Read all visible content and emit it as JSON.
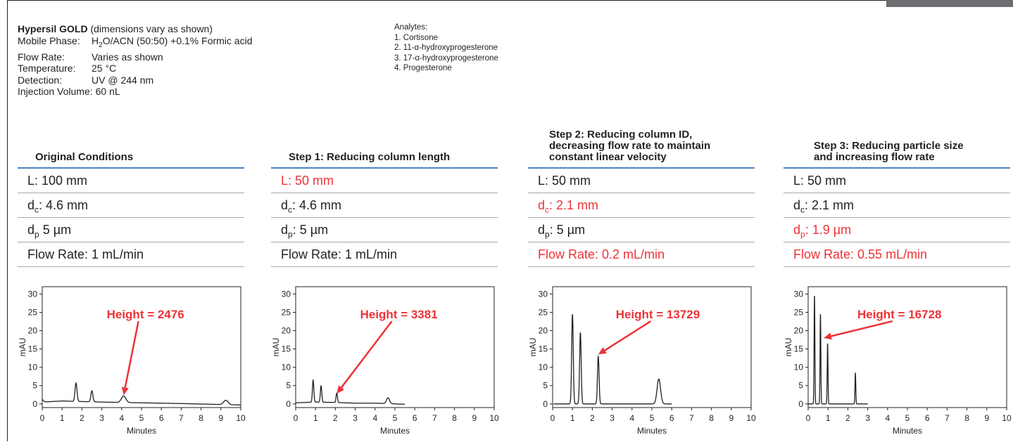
{
  "conditions": {
    "title_bold": "Hypersil GOLD",
    "title_rest": " (dimensions vary as shown)",
    "mobile_phase_label": "Mobile Phase:",
    "mobile_phase_pre": "H",
    "mobile_phase_sub": "2",
    "mobile_phase_post": "O/ACN (50:50) +0.1% Formic acid",
    "flow_rate_label": "Flow Rate:",
    "flow_rate_value": "Varies as shown",
    "temperature_label": "Temperature:",
    "temperature_value": "25 °C",
    "detection_label": "Detection:",
    "detection_value": "UV @ 244 nm",
    "injection_label": "Injection Volume:",
    "injection_value": "60 nL"
  },
  "analytes": {
    "title": "Analytes:",
    "items": [
      "1. Cortisone",
      "2. 11-α-hydroxyprogesterone",
      "3. 17-α-hydroxyprogesterone",
      "4. Progesterone"
    ]
  },
  "panels": [
    {
      "heading_line1": "Original Conditions",
      "heading_line2": "",
      "heading_line3": "",
      "L": "L: 100 mm",
      "dc_pre": "d",
      "dc_sub": "c",
      "dc_post": ": 4.6 mm",
      "dp_pre": "d",
      "dp_sub": "p",
      "dp_post": " 5 µm",
      "flow": "Flow Rate: 1 mL/min",
      "changed": {
        "L": false,
        "dc": false,
        "dp": false,
        "flow": false
      }
    },
    {
      "heading_line1": "Step 1: Reducing column length",
      "heading_line2": "",
      "heading_line3": "",
      "L": "L: 50 mm",
      "dc_pre": "d",
      "dc_sub": "c",
      "dc_post": ": 4.6 mm",
      "dp_pre": "d",
      "dp_sub": "p",
      "dp_post": ": 5 µm",
      "flow": "Flow Rate: 1 mL/min",
      "changed": {
        "L": true,
        "dc": false,
        "dp": false,
        "flow": false
      }
    },
    {
      "heading_line1": "Step 2: Reducing column ID,",
      "heading_line2": "decreasing flow rate to maintain",
      "heading_line3": "constant linear velocity",
      "L": "L: 50 mm",
      "dc_pre": "d",
      "dc_sub": "c",
      "dc_post": ": 2.1 mm",
      "dp_pre": "d",
      "dp_sub": "p",
      "dp_post": ": 5 µm",
      "flow": "Flow Rate: 0.2 mL/min",
      "changed": {
        "L": false,
        "dc": true,
        "dp": false,
        "flow": true
      }
    },
    {
      "heading_line1": "Step 3: Reducing particle size",
      "heading_line2": "and increasing flow rate",
      "heading_line3": "",
      "L": "L: 50 mm",
      "dc_pre": "d",
      "dc_sub": "c",
      "dc_post": ": 2.1 mm",
      "dp_pre": "d",
      "dp_sub": "p",
      "dp_post": ": 1.9 µm",
      "flow": "Flow Rate: 0.55 mL/min",
      "changed": {
        "L": false,
        "dc": false,
        "dp": true,
        "flow": true
      }
    }
  ],
  "chart_data": [
    {
      "type": "line",
      "title": "",
      "xlabel": "Minutes",
      "ylabel": "mAU",
      "xlim": [
        0,
        10
      ],
      "ylim": [
        -1,
        32
      ],
      "xticks": [
        0,
        1,
        2,
        3,
        4,
        5,
        6,
        7,
        8,
        9,
        10
      ],
      "yticks": [
        0,
        5,
        10,
        15,
        20,
        25,
        30
      ],
      "peak_width": 0.05,
      "baseline": [
        [
          0,
          0.5
        ],
        [
          1,
          0.8
        ],
        [
          3,
          0.5
        ],
        [
          5,
          0.3
        ],
        [
          7,
          0.1
        ],
        [
          8.5,
          -0.1
        ],
        [
          10,
          -0.3
        ]
      ],
      "peaks": [
        {
          "x": 0.02,
          "h": 0.6
        },
        {
          "x": 1.7,
          "h": 5.0
        },
        {
          "x": 2.5,
          "h": 3.0
        },
        {
          "x": 4.1,
          "h": 1.8
        },
        {
          "x": 9.25,
          "h": 1.2
        }
      ],
      "end_x": 10,
      "annotation": {
        "text": "Height = 2476",
        "peak_x": 4.1,
        "peak_y": 2.4,
        "label_x": 5.2,
        "label_y": 24.5
      },
      "arrow_color": "#ed3237"
    },
    {
      "type": "line",
      "title": "",
      "xlabel": "Minutes",
      "ylabel": "mAU",
      "xlim": [
        0,
        10
      ],
      "ylim": [
        -1,
        32
      ],
      "xticks": [
        0,
        1,
        2,
        3,
        4,
        5,
        6,
        7,
        8,
        9,
        10
      ],
      "yticks": [
        0,
        5,
        10,
        15,
        20,
        25,
        30
      ],
      "peak_width": 0.035,
      "baseline": [
        [
          0,
          0.3
        ],
        [
          1,
          0.5
        ],
        [
          2,
          0.4
        ],
        [
          3,
          0.2
        ],
        [
          4,
          0.2
        ],
        [
          5.5,
          -0.1
        ]
      ],
      "peaks": [
        {
          "x": 0.88,
          "h": 6.0
        },
        {
          "x": 1.28,
          "h": 4.5
        },
        {
          "x": 2.07,
          "h": 2.6
        },
        {
          "x": 4.65,
          "h": 1.6
        }
      ],
      "end_x": 5.5,
      "annotation": {
        "text": "Height = 3381",
        "peak_x": 2.07,
        "peak_y": 2.8,
        "label_x": 5.2,
        "label_y": 24.5
      },
      "arrow_color": "#ed3237"
    },
    {
      "type": "line",
      "title": "",
      "xlabel": "Minutes",
      "ylabel": "mAU",
      "xlim": [
        0,
        10
      ],
      "ylim": [
        -1,
        32
      ],
      "xticks": [
        0,
        1,
        2,
        3,
        4,
        5,
        6,
        7,
        8,
        9,
        10
      ],
      "yticks": [
        0,
        5,
        10,
        15,
        20,
        25,
        30
      ],
      "peak_width": 0.04,
      "baseline": [
        [
          0.05,
          0
        ],
        [
          1,
          0
        ],
        [
          2,
          0
        ],
        [
          3,
          0
        ],
        [
          4,
          0
        ],
        [
          5,
          0
        ],
        [
          6,
          0
        ]
      ],
      "peaks": [
        {
          "x": 1.0,
          "h": 24.5
        },
        {
          "x": 1.4,
          "h": 19.5
        },
        {
          "x": 2.3,
          "h": 13.0
        },
        {
          "x": 5.35,
          "h": 6.8
        }
      ],
      "end_x": 6,
      "annotation": {
        "text": "Height = 13729",
        "peak_x": 2.3,
        "peak_y": 13.5,
        "label_x": 5.3,
        "label_y": 24.5
      },
      "arrow_color": "#ed3237"
    },
    {
      "type": "line",
      "title": "",
      "xlabel": "Minutes",
      "ylabel": "mAU",
      "xlim": [
        0,
        10
      ],
      "ylim": [
        -1,
        32
      ],
      "xticks": [
        0,
        1,
        2,
        3,
        4,
        5,
        6,
        7,
        8,
        9,
        10
      ],
      "yticks": [
        0,
        5,
        10,
        15,
        20,
        25,
        30
      ],
      "peak_width": 0.02,
      "baseline": [
        [
          0,
          0
        ],
        [
          1,
          0
        ],
        [
          2,
          0
        ],
        [
          3,
          0
        ]
      ],
      "peaks": [
        {
          "x": 0.32,
          "h": 29.5
        },
        {
          "x": 0.62,
          "h": 24.5
        },
        {
          "x": 0.98,
          "h": 16.5
        },
        {
          "x": 2.38,
          "h": 8.5
        }
      ],
      "end_x": 3,
      "annotation": {
        "text": "Height = 16728",
        "peak_x": 0.78,
        "peak_y": 18.0,
        "label_x": 4.6,
        "label_y": 24.5
      },
      "arrow_color": "#ed3237"
    }
  ],
  "colors": {
    "accent_red": "#ed3237",
    "rule_blue": "#4f85c2",
    "ink": "#231f20",
    "divider": "#a7a9ac"
  }
}
